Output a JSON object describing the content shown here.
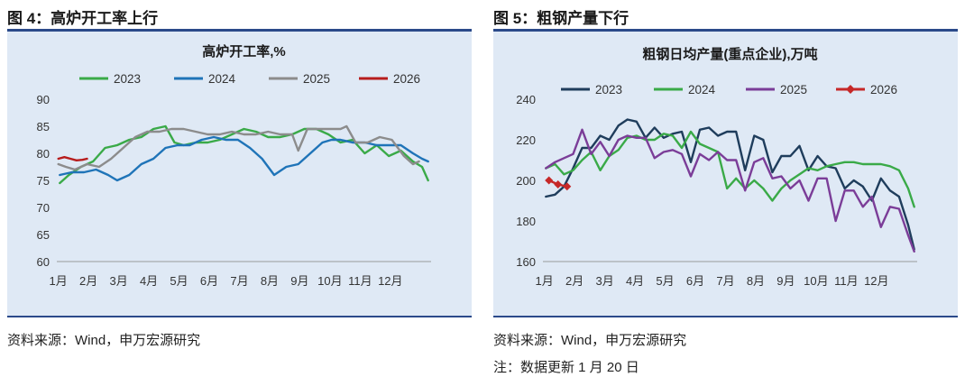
{
  "figures": [
    {
      "label": "图 4：高炉开工率上行",
      "source": "资料来源：Wind，申万宏源研究",
      "note": "",
      "chart_data": {
        "type": "line",
        "title": "高炉开工率,%",
        "xlabel": "",
        "ylabel": "",
        "ylim": [
          60,
          90
        ],
        "yticks": [
          60,
          65,
          70,
          75,
          80,
          85,
          90
        ],
        "xlim": [
          0,
          12.4
        ],
        "xtick_labels": [
          "1月",
          "2月",
          "3月",
          "4月",
          "5月",
          "6月",
          "7月",
          "8月",
          "9月",
          "10月",
          "11月",
          "12月"
        ],
        "legend_position": "top",
        "series": [
          {
            "name": "2023",
            "color": "#3aaa48",
            "marker": "none",
            "x": [
              0.1,
              0.4,
              0.8,
              1.2,
              1.6,
              2.0,
              2.4,
              2.8,
              3.2,
              3.6,
              3.9,
              4.2,
              4.6,
              5.0,
              5.4,
              5.8,
              6.2,
              6.6,
              7.0,
              7.4,
              7.8,
              8.2,
              8.6,
              9.0,
              9.4,
              9.8,
              10.2,
              10.6,
              11.0,
              11.4,
              11.8,
              12.1,
              12.3
            ],
            "y": [
              74.5,
              76,
              77.5,
              78.5,
              81,
              81.5,
              82.5,
              83,
              84.5,
              85,
              82,
              81.5,
              82,
              82,
              82.5,
              83.5,
              84.5,
              84,
              83,
              83,
              83.5,
              84.5,
              84.5,
              83.5,
              82,
              82.5,
              80,
              81.5,
              79.5,
              80.5,
              78.5,
              77.5,
              75
            ]
          },
          {
            "name": "2024",
            "color": "#1f74b8",
            "marker": "none",
            "x": [
              0.1,
              0.5,
              0.9,
              1.3,
              1.7,
              2.0,
              2.4,
              2.8,
              3.2,
              3.6,
              4.0,
              4.4,
              4.8,
              5.2,
              5.6,
              6.0,
              6.4,
              6.8,
              7.2,
              7.6,
              8.0,
              8.4,
              8.8,
              9.1,
              9.4,
              9.8,
              10.2,
              10.6,
              11.0,
              11.4,
              11.8,
              12.1,
              12.3
            ],
            "y": [
              76,
              76.5,
              76.5,
              77,
              76,
              75,
              76,
              78,
              79,
              81,
              81.5,
              81.5,
              82.5,
              83,
              82.5,
              82.5,
              81,
              79,
              76,
              77.5,
              78,
              80,
              82,
              82.5,
              82.5,
              82,
              82,
              81.5,
              81.5,
              81.5,
              80,
              79,
              78.5
            ]
          },
          {
            "name": "2025",
            "color": "#8c8c8c",
            "marker": "none",
            "x": [
              0.05,
              0.3,
              0.6,
              1.0,
              1.4,
              1.8,
              2.2,
              2.6,
              3.0,
              3.4,
              3.8,
              4.2,
              4.6,
              5.0,
              5.4,
              5.8,
              6.2,
              6.6,
              7.0,
              7.4,
              7.8,
              8.0,
              8.3,
              8.6,
              9.0,
              9.4,
              9.6,
              9.9,
              10.3,
              10.7,
              11.1,
              11.5,
              11.8,
              12.0
            ],
            "y": [
              78,
              77.5,
              77,
              78,
              77.5,
              79,
              81,
              83,
              84,
              84,
              84.5,
              84.5,
              84,
              83.5,
              83.5,
              84,
              83.5,
              83.5,
              84,
              83.5,
              83.5,
              80.5,
              84.5,
              84.5,
              84.5,
              84.5,
              85,
              82,
              82,
              83,
              82.5,
              79.5,
              78,
              78.5
            ]
          },
          {
            "name": "2026",
            "color": "#b71c1c",
            "marker": "none",
            "x": [
              0.05,
              0.25,
              0.45,
              0.65,
              0.85,
              1.0
            ],
            "y": [
              79,
              79.3,
              79,
              78.7,
              78.8,
              79
            ]
          }
        ]
      }
    },
    {
      "label": "图 5：粗钢产量下行",
      "source": "资料来源：Wind，申万宏源研究",
      "note": "注：数据更新 1 月 20 日",
      "chart_data": {
        "type": "line",
        "title": "粗钢日均产量(重点企业),万吨",
        "xlabel": "",
        "ylabel": "",
        "ylim": [
          160,
          240
        ],
        "yticks": [
          160,
          180,
          200,
          220,
          240
        ],
        "xlim": [
          0,
          12.4
        ],
        "xtick_labels": [
          "1月",
          "2月",
          "3月",
          "4月",
          "5月",
          "6月",
          "7月",
          "8月",
          "9月",
          "10月",
          "11月",
          "12月"
        ],
        "legend_position": "top",
        "series": [
          {
            "name": "2023",
            "color": "#1f3d5c",
            "marker": "none",
            "x": [
              0.1,
              0.4,
              0.7,
              1.0,
              1.3,
              1.6,
              1.9,
              2.2,
              2.5,
              2.8,
              3.1,
              3.4,
              3.7,
              4.0,
              4.3,
              4.6,
              4.9,
              5.2,
              5.5,
              5.8,
              6.1,
              6.4,
              6.7,
              7.0,
              7.3,
              7.6,
              7.9,
              8.2,
              8.5,
              8.8,
              9.1,
              9.4,
              9.7,
              10.0,
              10.3,
              10.6,
              10.9,
              11.2,
              11.5,
              11.8,
              12.1,
              12.3
            ],
            "y": [
              192,
              193,
              197,
              206,
              216,
              216,
              222,
              220,
              227,
              230,
              229,
              221,
              226,
              221,
              223,
              224,
              209,
              225,
              226,
              222,
              224,
              224,
              205,
              222,
              220,
              204,
              212,
              212,
              217,
              205,
              212,
              207,
              206,
              196,
              200,
              197,
              190,
              201,
              195,
              192,
              178,
              166
            ]
          },
          {
            "name": "2024",
            "color": "#3aaa48",
            "marker": "none",
            "x": [
              0.1,
              0.4,
              0.7,
              1.0,
              1.3,
              1.6,
              1.9,
              2.2,
              2.5,
              2.8,
              3.1,
              3.4,
              3.7,
              4.0,
              4.3,
              4.6,
              4.9,
              5.2,
              5.5,
              5.8,
              6.1,
              6.4,
              6.7,
              7.0,
              7.3,
              7.6,
              7.9,
              8.2,
              8.5,
              8.8,
              9.1,
              9.4,
              9.7,
              10.0,
              10.3,
              10.6,
              10.9,
              11.2,
              11.5,
              11.8,
              12.1,
              12.3
            ],
            "y": [
              206,
              208,
              203,
              205,
              210,
              214,
              205,
              212,
              215,
              221,
              222,
              220,
              220,
              223,
              222,
              216,
              224,
              218,
              216,
              214,
              196,
              201,
              196,
              200,
              196,
              190,
              196,
              200,
              203,
              206,
              205,
              207,
              208,
              209,
              209,
              208,
              208,
              208,
              207,
              205,
              196,
              187
            ]
          },
          {
            "name": "2025",
            "color": "#7b3d98",
            "marker": "none",
            "x": [
              0.1,
              0.4,
              0.7,
              1.0,
              1.3,
              1.6,
              1.9,
              2.2,
              2.5,
              2.8,
              3.1,
              3.4,
              3.7,
              4.0,
              4.3,
              4.6,
              4.9,
              5.2,
              5.5,
              5.8,
              6.1,
              6.4,
              6.7,
              7.0,
              7.3,
              7.6,
              7.9,
              8.2,
              8.5,
              8.8,
              9.1,
              9.4,
              9.7,
              10.0,
              10.3,
              10.6,
              10.9,
              11.2,
              11.5,
              11.8,
              12.1,
              12.3
            ],
            "y": [
              206,
              209,
              211,
              213,
              225,
              213,
              219,
              212,
              220,
              222,
              221,
              221,
              211,
              214,
              215,
              213,
              202,
              213,
              210,
              214,
              210,
              210,
              195,
              209,
              211,
              201,
              202,
              196,
              200,
              190,
              201,
              201,
              180,
              195,
              195,
              187,
              192,
              177,
              187,
              186,
              173,
              165
            ]
          },
          {
            "name": "2026",
            "color": "#c62828",
            "marker": "diamond",
            "x": [
              0.2,
              0.5,
              0.8
            ],
            "y": [
              200,
              198,
              197
            ]
          }
        ]
      }
    }
  ]
}
